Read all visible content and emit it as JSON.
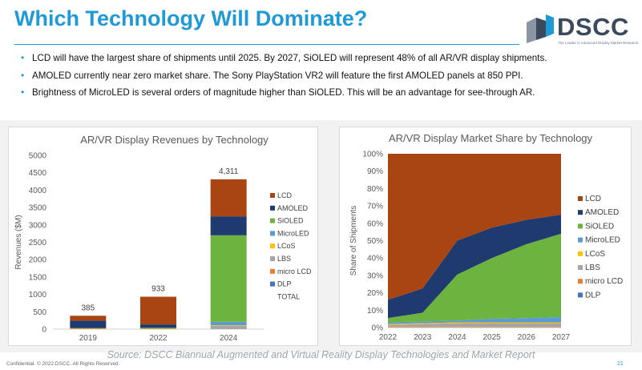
{
  "page": {
    "title": "Which Technology Will Dominate?",
    "logo_text": "DSCC",
    "logo_tagline": "The Leader in Advanced Display Market Research",
    "bullets": [
      "LCD will have the largest share of shipments until 2025. By 2027, SiOLED will represent 48% of all AR/VR display shipments.",
      "AMOLED currently near zero market share. The Sony PlayStation VR2 will feature the first AMOLED panels at 850 PPI.",
      "Brightness of MicroLED is several orders of magnitude higher than SiOLED. This will be an advantage for see-through AR."
    ],
    "source": "Source: DSCC Biannual Augmented and Virtual Reality Display Technologies and Market Report",
    "confidential": "Confidential. © 2022 DSCC. All Rights Reserved.",
    "page_number": "21",
    "colors": {
      "title_blue": "#1f9ad6",
      "LCD": "#a84513",
      "AMOLED": "#1f3a6e",
      "SiOLED": "#6db33f",
      "MicroLED": "#5b9bd5",
      "LCoS": "#ffc000",
      "LBS": "#a5a5a5",
      "micro LCD": "#ed7d31",
      "DLP": "#4472c4"
    }
  },
  "chart_data": [
    {
      "type": "bar",
      "stacked": true,
      "title": "AR/VR Display Revenues by Technology",
      "xlabel": "",
      "ylabel": "Revenues ($M)",
      "ylim": [
        0,
        5000
      ],
      "yticks": [
        0,
        500,
        1000,
        1500,
        2000,
        2500,
        3000,
        3500,
        4000,
        4500,
        5000
      ],
      "categories": [
        "2019",
        "2022",
        "2024"
      ],
      "series": [
        {
          "name": "DLP",
          "values": [
            0,
            0,
            0
          ]
        },
        {
          "name": "micro LCD",
          "values": [
            15,
            10,
            5
          ]
        },
        {
          "name": "LBS",
          "values": [
            0,
            0,
            95
          ]
        },
        {
          "name": "LCoS",
          "values": [
            5,
            5,
            15
          ]
        },
        {
          "name": "MicroLED",
          "values": [
            0,
            0,
            95
          ]
        },
        {
          "name": "SiOLED",
          "values": [
            10,
            25,
            2490
          ]
        },
        {
          "name": "AMOLED",
          "values": [
            215,
            95,
            545
          ]
        },
        {
          "name": "LCD",
          "values": [
            140,
            798,
            1066
          ]
        }
      ],
      "totals": [
        "385",
        "933",
        "4,311"
      ],
      "legend": [
        "LCD",
        "AMOLED",
        "SiOLED",
        "MicroLED",
        "LCoS",
        "LBS",
        "micro LCD",
        "DLP",
        "TOTAL"
      ],
      "legend_position": "right",
      "grid": false
    },
    {
      "type": "area",
      "stacked": true,
      "title": "AR/VR Display Market Share by Technology",
      "xlabel": "",
      "ylabel": "Share of Shipments",
      "ylim": [
        0,
        100
      ],
      "yticks": [
        "0%",
        "10%",
        "20%",
        "30%",
        "40%",
        "50%",
        "60%",
        "70%",
        "80%",
        "90%",
        "100%"
      ],
      "x": [
        "2022",
        "2023",
        "2024",
        "2025",
        "2026",
        "2027"
      ],
      "series": [
        {
          "name": "DLP",
          "values": [
            0,
            0,
            0,
            0,
            0,
            0
          ]
        },
        {
          "name": "micro LCD",
          "values": [
            0.5,
            0.5,
            0.5,
            0.5,
            0.5,
            0.5
          ]
        },
        {
          "name": "LBS",
          "values": [
            1,
            1.5,
            2,
            2,
            2,
            2
          ]
        },
        {
          "name": "LCoS",
          "values": [
            0.5,
            0.5,
            0.5,
            0.5,
            0.5,
            0.5
          ]
        },
        {
          "name": "MicroLED",
          "values": [
            1,
            1,
            1,
            2,
            2.5,
            3
          ]
        },
        {
          "name": "SiOLED",
          "values": [
            2.5,
            5,
            26.5,
            35,
            42.5,
            48
          ]
        },
        {
          "name": "AMOLED",
          "values": [
            10.5,
            14,
            19.5,
            17.5,
            14,
            11
          ]
        },
        {
          "name": "LCD",
          "values": [
            84,
            77.5,
            50,
            42.5,
            38,
            35
          ]
        }
      ],
      "legend": [
        "LCD",
        "AMOLED",
        "SiOLED",
        "MicroLED",
        "LCoS",
        "LBS",
        "micro LCD",
        "DLP"
      ],
      "legend_position": "right",
      "grid": false
    }
  ]
}
